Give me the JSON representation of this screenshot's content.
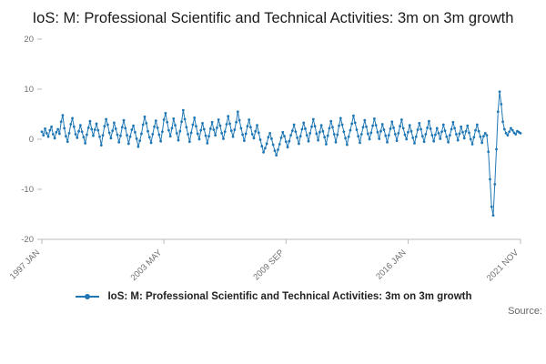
{
  "chart_data": {
    "type": "line",
    "title": "IoS: M: Professional Scientific and Technical Activities: 3m on 3m growth",
    "xlabel": "",
    "ylabel": "",
    "ylim": [
      -20,
      20
    ],
    "y_ticks": [
      20,
      10,
      0,
      -10,
      -20
    ],
    "x_tick_labels": [
      "1997 JAN",
      "2003 MAY",
      "2009 SEP",
      "2016 JAN",
      "2021 NOV"
    ],
    "x_tick_month_index": [
      0,
      76,
      152,
      228,
      298
    ],
    "frequency": "monthly",
    "start": "1997 JAN",
    "end": "2021 NOV",
    "grid": false,
    "legend_position": "bottom",
    "line_color": "#1f77b4",
    "axis_color": "#bbbbbb",
    "tick_label_color": "#707070",
    "series": [
      {
        "name": "IoS: M: Professional Scientific and Technical Activities: 3m on 3m growth",
        "color": "#1f77b4",
        "values": [
          1.5,
          0.8,
          2.1,
          1.2,
          0.5,
          1.8,
          2.5,
          1.0,
          0.2,
          1.4,
          2.0,
          1.1,
          3.5,
          4.8,
          2.2,
          0.6,
          -0.5,
          1.2,
          3.0,
          4.2,
          2.5,
          1.0,
          0.3,
          1.6,
          2.8,
          1.5,
          0.4,
          -0.8,
          0.9,
          2.3,
          3.6,
          2.0,
          0.7,
          1.9,
          3.1,
          1.8,
          0.5,
          -1.2,
          0.8,
          2.6,
          4.0,
          2.9,
          1.3,
          0.2,
          1.7,
          3.3,
          2.1,
          0.9,
          -0.6,
          0.7,
          2.4,
          3.8,
          2.2,
          0.8,
          -0.9,
          0.5,
          1.9,
          2.7,
          1.4,
          0.1,
          -1.5,
          -0.3,
          1.1,
          2.9,
          4.5,
          3.2,
          1.6,
          0.4,
          -0.7,
          1.0,
          2.5,
          3.7,
          2.3,
          0.9,
          -0.4,
          1.5,
          3.9,
          5.2,
          3.4,
          1.8,
          0.6,
          2.2,
          4.1,
          2.8,
          1.2,
          -0.2,
          1.6,
          3.5,
          5.8,
          4.0,
          2.4,
          1.0,
          -0.5,
          1.3,
          2.9,
          4.3,
          2.6,
          1.1,
          0.0,
          1.8,
          3.2,
          2.0,
          0.7,
          -0.8,
          0.6,
          2.1,
          3.4,
          1.9,
          0.8,
          2.3,
          3.9,
          2.7,
          1.2,
          0.1,
          1.5,
          3.0,
          4.6,
          3.1,
          1.7,
          0.5,
          1.9,
          3.4,
          5.5,
          3.8,
          2.2,
          0.9,
          -0.3,
          1.1,
          2.6,
          3.9,
          2.4,
          1.0,
          0.2,
          1.6,
          2.8,
          1.3,
          -0.1,
          -1.4,
          -2.6,
          -1.8,
          -0.9,
          0.4,
          1.2,
          0.1,
          -1.1,
          -2.3,
          -3.2,
          -2.1,
          -1.0,
          0.3,
          1.4,
          0.6,
          -0.5,
          -1.6,
          -0.4,
          0.8,
          1.7,
          2.9,
          1.5,
          0.3,
          -0.9,
          0.6,
          2.0,
          3.3,
          2.1,
          0.8,
          -0.4,
          1.2,
          2.5,
          4.0,
          2.6,
          1.1,
          -0.2,
          1.4,
          2.8,
          1.6,
          0.4,
          -1.0,
          0.7,
          2.2,
          3.6,
          2.4,
          1.0,
          -0.6,
          0.9,
          2.7,
          4.2,
          2.9,
          1.5,
          0.2,
          -1.1,
          0.5,
          1.8,
          3.1,
          4.7,
          3.3,
          1.9,
          0.6,
          -0.7,
          1.0,
          2.4,
          3.8,
          2.5,
          1.1,
          0.0,
          1.3,
          2.7,
          4.1,
          2.8,
          1.4,
          0.1,
          1.6,
          3.0,
          1.9,
          0.7,
          -0.6,
          0.8,
          2.1,
          3.5,
          2.3,
          1.0,
          -0.3,
          1.2,
          2.6,
          3.9,
          2.2,
          0.9,
          0.0,
          1.4,
          2.8,
          1.6,
          0.3,
          -0.8,
          0.5,
          1.9,
          3.2,
          2.0,
          0.6,
          -0.5,
          1.0,
          2.3,
          3.6,
          2.1,
          0.8,
          -0.4,
          0.9,
          2.2,
          1.2,
          0.1,
          1.5,
          2.9,
          1.7,
          0.5,
          -0.6,
          0.8,
          2.0,
          3.4,
          2.2,
          1.0,
          -0.2,
          1.1,
          2.5,
          1.4,
          0.2,
          1.6,
          2.7,
          1.3,
          0.0,
          -1.0,
          0.4,
          1.8,
          2.9,
          1.6,
          0.5,
          -0.7,
          0.6,
          1.2,
          0.8,
          -2.5,
          -8.0,
          -13.5,
          -15.2,
          -9.0,
          -2.0,
          5.5,
          9.5,
          7.0,
          3.5,
          2.0,
          1.2,
          0.8,
          1.5,
          2.2,
          1.8,
          1.3,
          1.0,
          1.6,
          1.4,
          1.2
        ]
      }
    ]
  },
  "source": {
    "label": "Source:"
  }
}
